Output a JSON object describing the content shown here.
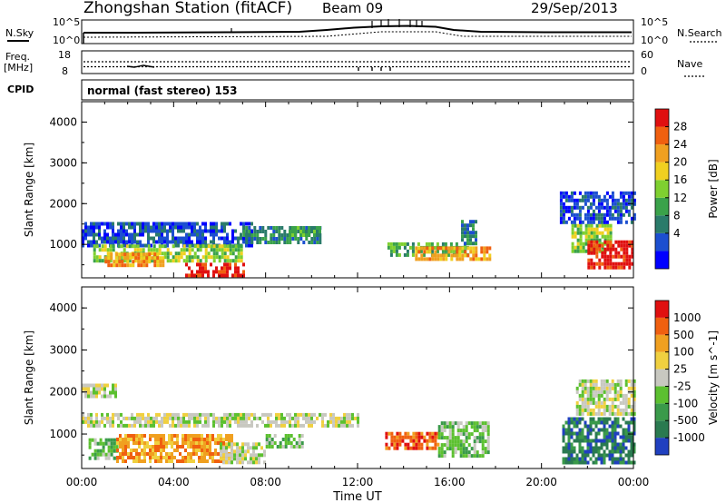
{
  "header": {
    "station": "Zhongshan Station (fitACF)",
    "beam": "Beam 09",
    "date": "29/Sep/2013"
  },
  "mini": {
    "nsky_label": "N.Sky",
    "nsky_ticks": [
      "10^5",
      "10^0"
    ],
    "nsearch_label": "N.Search",
    "nsearch_ticks": [
      "10^5",
      "10^0"
    ],
    "freq_label": "Freq.",
    "freq_unit": "[MHz]",
    "freq_ticks": [
      "18",
      "8"
    ],
    "nave_label": "Nave",
    "nave_ticks": [
      "60",
      "0"
    ],
    "cpid_label": "CPID",
    "cpid_value": "normal (fast stereo) 153"
  },
  "chart_data": [
    {
      "type": "heatmap",
      "name": "power",
      "ylabel": "Slant Range [km]",
      "yticks": [
        "4000",
        "3000",
        "2000",
        "1000"
      ],
      "ylim": [
        180,
        4500
      ],
      "xlim": [
        0,
        24
      ],
      "colorbar_label": "Power [dB]",
      "colorbar_ticks": [
        "28",
        "24",
        "20",
        "16",
        "12",
        "8",
        "4"
      ],
      "colorbar_colors": [
        "#0000ff",
        "#1c4fd0",
        "#2a7b6a",
        "#3aa24a",
        "#7fd030",
        "#f0d020",
        "#f0a020",
        "#f06010",
        "#e01010"
      ],
      "regions": [
        {
          "x": [
            0.0,
            7.4
          ],
          "y": [
            1000,
            1550
          ],
          "level": 1
        },
        {
          "x": [
            0.5,
            7.0
          ],
          "y": [
            600,
            1000
          ],
          "level": 4
        },
        {
          "x": [
            1.0,
            3.5
          ],
          "y": [
            450,
            800
          ],
          "level": 6
        },
        {
          "x": [
            4.5,
            7.0
          ],
          "y": [
            250,
            550
          ],
          "level": 8
        },
        {
          "x": [
            7.0,
            10.4
          ],
          "y": [
            1050,
            1450
          ],
          "level": 2
        },
        {
          "x": [
            9.0,
            10.4
          ],
          "y": [
            1200,
            1450
          ],
          "level": 3
        },
        {
          "x": [
            13.3,
            16.8
          ],
          "y": [
            700,
            1050
          ],
          "level": 3
        },
        {
          "x": [
            14.5,
            17.8
          ],
          "y": [
            600,
            950
          ],
          "level": 6
        },
        {
          "x": [
            16.5,
            17.2
          ],
          "y": [
            1000,
            1600
          ],
          "level": 2
        },
        {
          "x": [
            21.3,
            23.0
          ],
          "y": [
            800,
            1500
          ],
          "level": 4
        },
        {
          "x": [
            22.0,
            24.0
          ],
          "y": [
            400,
            1100
          ],
          "level": 8
        },
        {
          "x": [
            20.8,
            24.0
          ],
          "y": [
            1500,
            2300
          ],
          "level": 1
        }
      ]
    },
    {
      "type": "heatmap",
      "name": "velocity",
      "ylabel": "Slant Range [km]",
      "yticks": [
        "4000",
        "3000",
        "2000",
        "1000"
      ],
      "ylim": [
        180,
        4500
      ],
      "xlim": [
        0,
        24
      ],
      "xlabel": "Time UT",
      "xticks": [
        "00:00",
        "04:00",
        "08:00",
        "12:00",
        "16:00",
        "20:00",
        "00:00"
      ],
      "colorbar_label": "Velocity [m s^-1]",
      "colorbar_ticks": [
        "1000",
        "500",
        "100",
        "25",
        "-25",
        "-100",
        "-500",
        "-1000"
      ],
      "colorbar_colors": [
        "#2040c0",
        "#2a7a50",
        "#3a9a4a",
        "#5cc030",
        "#c8c8c0",
        "#f0d040",
        "#f0a020",
        "#f06010",
        "#e01010"
      ],
      "regions": [
        {
          "x": [
            0.0,
            12.0
          ],
          "y": [
            1200,
            1500
          ],
          "level": 4
        },
        {
          "x": [
            0.0,
            1.5
          ],
          "y": [
            1900,
            2200
          ],
          "level": 4
        },
        {
          "x": [
            0.3,
            1.5
          ],
          "y": [
            400,
            900
          ],
          "level": 3
        },
        {
          "x": [
            1.5,
            6.5
          ],
          "y": [
            350,
            1000
          ],
          "level": 6
        },
        {
          "x": [
            6.0,
            8.0
          ],
          "y": [
            350,
            800
          ],
          "level": 4
        },
        {
          "x": [
            8.0,
            9.6
          ],
          "y": [
            700,
            1000
          ],
          "level": 3
        },
        {
          "x": [
            13.2,
            15.5
          ],
          "y": [
            650,
            1050
          ],
          "level": 7
        },
        {
          "x": [
            15.5,
            17.7
          ],
          "y": [
            500,
            1300
          ],
          "level": 3
        },
        {
          "x": [
            20.9,
            24.0
          ],
          "y": [
            300,
            1400
          ],
          "level": 1
        },
        {
          "x": [
            21.5,
            24.0
          ],
          "y": [
            1500,
            2300
          ],
          "level": 4
        }
      ]
    }
  ]
}
